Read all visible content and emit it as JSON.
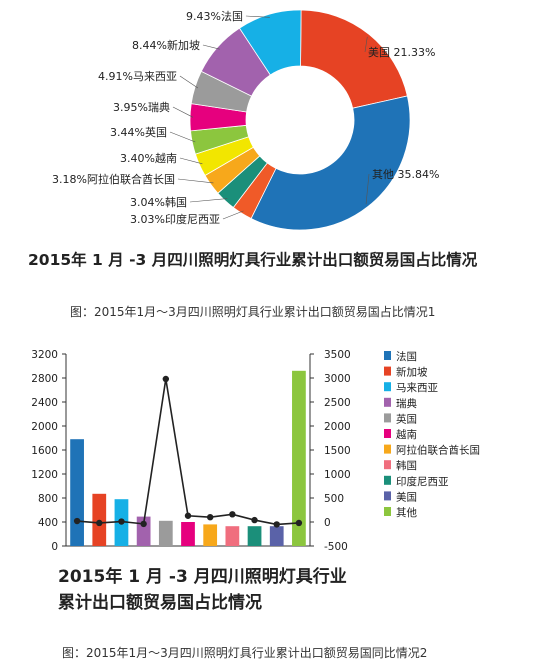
{
  "chart_data": [
    {
      "type": "pie",
      "variant": "donut",
      "title": "2015年 1 月 -3 月四川照明灯具行业累计出口额贸易国占比情况",
      "slices": [
        {
          "name": "美国",
          "value": 21.33,
          "label": "美国 21.33%",
          "color": "#e64324"
        },
        {
          "name": "其他",
          "value": 35.84,
          "label": "其他 35.84%",
          "color": "#1f73b7"
        },
        {
          "name": "印度尼西亚",
          "value": 3.03,
          "label": "3.03%印度尼西亚",
          "color": "#f05a28"
        },
        {
          "name": "韩国",
          "value": 3.04,
          "label": "3.04%韩国",
          "color": "#1b8f7a"
        },
        {
          "name": "阿拉伯联合酋长国",
          "value": 3.18,
          "label": "3.18%阿拉伯联合酋长国",
          "color": "#f7a81b"
        },
        {
          "name": "越南",
          "value": 3.4,
          "label": "3.40%越南",
          "color": "#f2e600"
        },
        {
          "name": "英国",
          "value": 3.44,
          "label": "3.44%英国",
          "color": "#8cc63e"
        },
        {
          "name": "瑞典",
          "value": 3.95,
          "label": "3.95%瑞典",
          "color": "#e6007e"
        },
        {
          "name": "马来西亚",
          "value": 4.91,
          "label": "4.91%马来西亚",
          "color": "#9b9b9b"
        },
        {
          "name": "新加坡",
          "value": 8.44,
          "label": "8.44%新加坡",
          "color": "#a262ad"
        },
        {
          "name": "法国",
          "value": 9.43,
          "label": "9.43%法国",
          "color": "#16b0e6"
        }
      ]
    },
    {
      "type": "bar",
      "combo": "bar-with-line",
      "title_lines": [
        "2015年 1 月 -3 月四川照明灯具行业",
        "累计出口额贸易国占比情况"
      ],
      "categories": [
        "法国",
        "新加坡",
        "马来西亚",
        "瑞典",
        "英国",
        "越南",
        "阿拉伯联合酋长国",
        "韩国",
        "印度尼西亚",
        "美国",
        "其他"
      ],
      "bar_series": {
        "axis": "left",
        "values": [
          1780,
          870,
          780,
          490,
          420,
          400,
          360,
          330,
          330,
          330,
          2920
        ],
        "colors": [
          "#1f73b7",
          "#e64324",
          "#16b0e6",
          "#a262ad",
          "#9b9b9b",
          "#e6007e",
          "#f7a81b",
          "#f06e7e",
          "#1b8f7a",
          "#5a62a8",
          "#8cc63e"
        ]
      },
      "line_series": {
        "axis": "right",
        "values": [
          20,
          -20,
          10,
          -40,
          2980,
          130,
          100,
          160,
          40,
          -50,
          -20
        ]
      },
      "left_axis": {
        "ylim": [
          0,
          3200
        ],
        "ticks": [
          0,
          400,
          800,
          1200,
          1600,
          2000,
          2400,
          2800,
          3200
        ]
      },
      "right_axis": {
        "ylim": [
          -500,
          3500
        ],
        "ticks": [
          -500,
          0,
          500,
          1000,
          1500,
          2000,
          2500,
          3000,
          3500
        ]
      },
      "legend": {
        "position": "right"
      }
    }
  ],
  "captions": {
    "fig1": "图：2015年1月～3月四川照明灯具行业累计出口额贸易国占比情况1",
    "fig2": "图：2015年1月～3月四川照明灯具行业累计出口额贸易国同比情况2"
  }
}
